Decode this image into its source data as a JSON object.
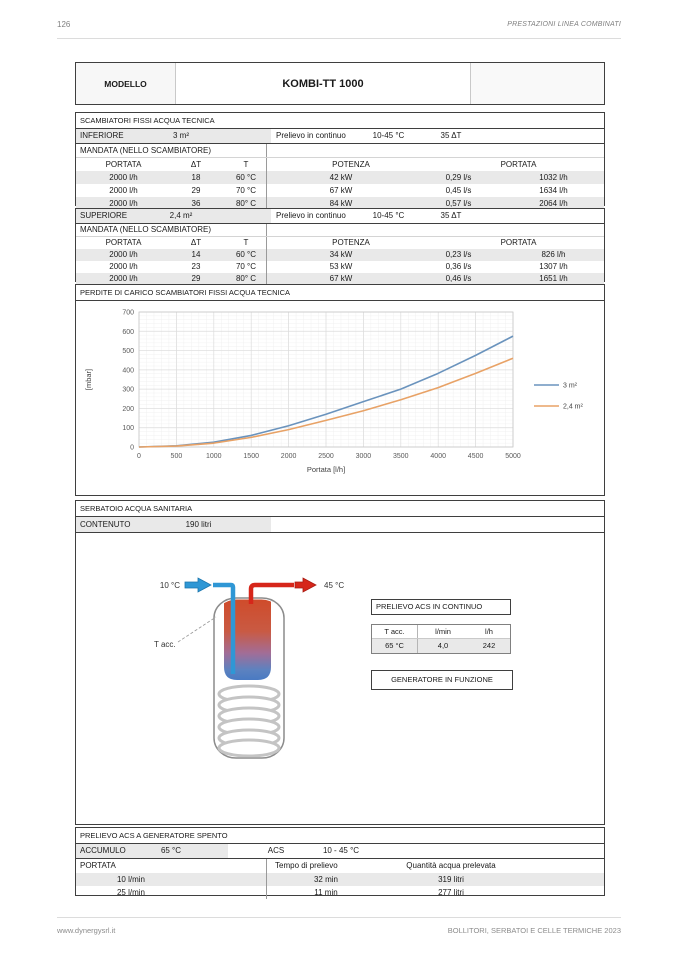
{
  "page": {
    "number": "126",
    "header_right": "PRESTAZIONI LINEA COMBINATI",
    "footer_left": "www.dynergysrl.it",
    "footer_right": "BOLLITORI, SERBATOI E CELLE TERMICHE 2023"
  },
  "model": {
    "label": "MODELLO",
    "value": "KOMBI-TT 1000"
  },
  "exchangers": {
    "section_title": "SCAMBIATORI FISSI ACQUA TECNICA",
    "inferiore": {
      "name": "INFERIORE",
      "area": "3 m²",
      "prelievo_label": "Prelievo in continuo",
      "prelievo_range": "10-45 °C",
      "prelievo_dt": "35 ΔT",
      "mandata_label": "MANDATA (NELLO SCAMBIATORE)",
      "headers": {
        "portata": "PORTATA",
        "dt": "ΔT",
        "t": "T",
        "potenza": "POTENZA",
        "portata2": "PORTATA"
      },
      "rows": [
        [
          "2000 l/h",
          "18",
          "60 °C",
          "42 kW",
          "0,29 l/s",
          "1032 l/h"
        ],
        [
          "2000 l/h",
          "29",
          "70 °C",
          "67 kW",
          "0,45 l/s",
          "1634 l/h"
        ],
        [
          "2000 l/h",
          "36",
          "80° C",
          "84 kW",
          "0,57 l/s",
          "2064 l/h"
        ]
      ]
    },
    "superiore": {
      "name": "SUPERIORE",
      "area": "2,4 m²",
      "prelievo_label": "Prelievo in continuo",
      "prelievo_range": "10-45 °C",
      "prelievo_dt": "35 ΔT",
      "mandata_label": "MANDATA (NELLO SCAMBIATORE)",
      "headers": {
        "portata": "PORTATA",
        "dt": "ΔT",
        "t": "T",
        "potenza": "POTENZA",
        "portata2": "PORTATA"
      },
      "rows": [
        [
          "2000 l/h",
          "14",
          "60 °C",
          "34 kW",
          "0,23 l/s",
          "826 l/h"
        ],
        [
          "2000 l/h",
          "23",
          "70 °C",
          "53 kW",
          "0,36 l/s",
          "1307 l/h"
        ],
        [
          "2000 l/h",
          "29",
          "80° C",
          "67 kW",
          "0,46 l/s",
          "1651 l/h"
        ]
      ]
    }
  },
  "chart_data": {
    "type": "line",
    "title": "PERDITE DI CARICO SCAMBIATORI FISSI ACQUA TECNICA",
    "xlabel": "Portata [l/h]",
    "ylabel": "[mbar]",
    "xlim": [
      0,
      5000
    ],
    "ylim": [
      0,
      700
    ],
    "x_ticks": [
      0,
      500,
      1000,
      1500,
      2000,
      2500,
      3000,
      3500,
      4000,
      4500,
      5000
    ],
    "y_ticks": [
      0,
      100,
      200,
      300,
      400,
      500,
      600,
      700
    ],
    "grid": true,
    "legend_position": "right",
    "x": [
      0,
      500,
      1000,
      1500,
      2000,
      2500,
      3000,
      3500,
      4000,
      4500,
      5000
    ],
    "series": [
      {
        "name": "3 m²",
        "color": "#6a93bd",
        "values": [
          0,
          6,
          25,
          60,
          110,
          170,
          235,
          300,
          382,
          475,
          575
        ]
      },
      {
        "name": "2,4 m²",
        "color": "#e8a266",
        "values": [
          0,
          5,
          20,
          50,
          90,
          138,
          188,
          245,
          308,
          382,
          460
        ]
      }
    ]
  },
  "tank": {
    "section_title": "SERBATOIO ACQUA SANITARIA",
    "contenuto_label": "CONTENUTO",
    "contenuto_value": "190 litri",
    "cold_in_label": "10 °C",
    "hot_out_label": "45 °C",
    "t_acc_label": "T acc.",
    "prelievo_box": {
      "title": "PRELIEVO ACS IN CONTINUO",
      "headers": [
        "T acc.",
        "l/min",
        "l/h"
      ],
      "row": [
        "65 °C",
        "4,0",
        "242"
      ]
    },
    "generator_label": "GENERATORE IN FUNZIONE"
  },
  "spento": {
    "title": "PRELIEVO ACS A GENERATORE SPENTO",
    "accumulo_label": "ACCUMULO",
    "accumulo_value": "65 °C",
    "acs_label": "ACS",
    "acs_value": "10 - 45 °C",
    "headers": [
      "PORTATA",
      "Tempo di prelievo",
      "Quantità acqua prelevata"
    ],
    "rows": [
      [
        "10 l/min",
        "32 min",
        "319 litri"
      ],
      [
        "25 l/min",
        "11 min",
        "277 litri"
      ]
    ]
  },
  "colors": {
    "row_shade": "#e9e9e9",
    "border_dark": "#3f3f3f",
    "series_blue": "#6a93bd",
    "series_orange": "#e8a266",
    "cold_blue": "#2f97d5",
    "hot_red": "#d6261a"
  }
}
